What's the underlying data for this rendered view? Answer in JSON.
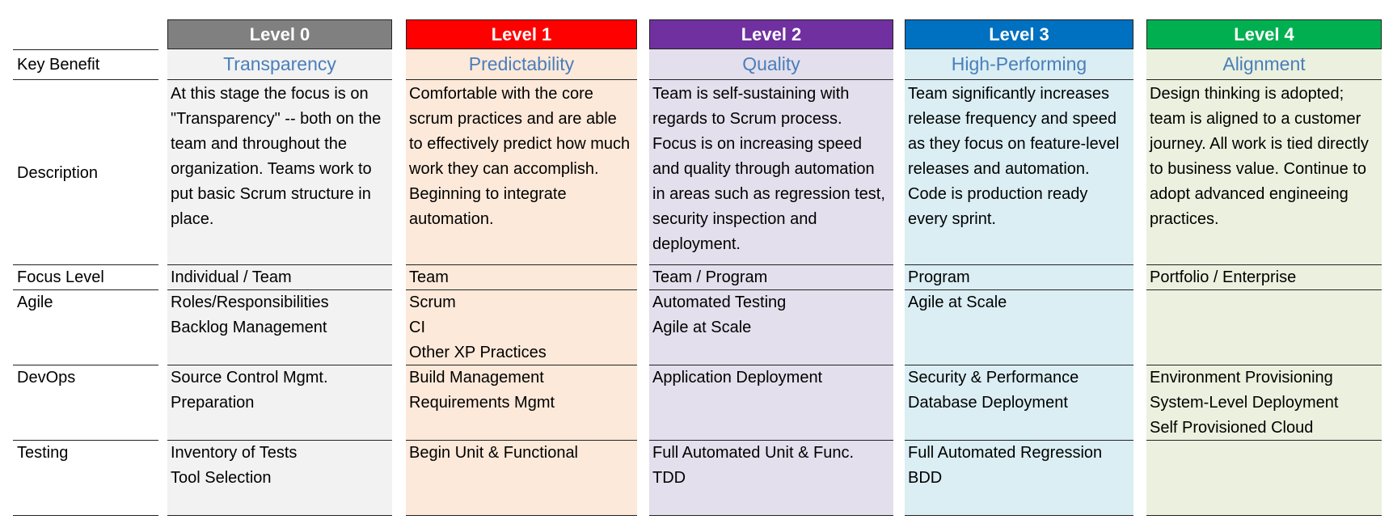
{
  "row_labels": {
    "key_benefit": "Key Benefit",
    "description": "Description",
    "focus_level": "Focus Level",
    "agile": "Agile",
    "devops": "DevOps",
    "testing": "Testing"
  },
  "levels": [
    {
      "header": "Level 0",
      "header_color": "#808080",
      "bg_color": "#f2f2f2",
      "key_benefit": "Transparency",
      "description": "At this stage the focus is on \"Transparency\" -- both on the team and throughout the organization.  Teams work to put basic Scrum structure in place.",
      "focus_level": "Individual / Team",
      "agile": [
        "Roles/Responsibilities",
        "Backlog Management"
      ],
      "devops": [
        "Source Control Mgmt.",
        "Preparation"
      ],
      "testing": [
        "Inventory of Tests",
        "Tool Selection"
      ]
    },
    {
      "header": "Level 1",
      "header_color": "#ff0000",
      "bg_color": "#fde9d9",
      "key_benefit": "Predictability",
      "description": "Comfortable with the core scrum practices and are able to effectively predict how much work they can accomplish.  Beginning to integrate automation.",
      "focus_level": "Team",
      "agile": [
        "Scrum",
        "CI",
        "Other XP Practices"
      ],
      "devops": [
        "Build Management",
        "Requirements Mgmt"
      ],
      "testing": [
        "Begin Unit & Functional"
      ]
    },
    {
      "header": "Level 2",
      "header_color": "#7030a0",
      "bg_color": "#e4dfec",
      "key_benefit": "Quality",
      "description": "Team is self-sustaining with regards to Scrum process.  Focus is on increasing speed and quality through automation in areas such as regression test, security inspection and deployment.",
      "focus_level": "Team / Program",
      "agile": [
        "Automated Testing",
        "Agile at Scale"
      ],
      "devops": [
        "Application Deployment"
      ],
      "testing": [
        "Full Automated Unit & Func.",
        "TDD"
      ]
    },
    {
      "header": "Level 3",
      "header_color": "#0070c0",
      "bg_color": "#daeef3",
      "key_benefit": "High-Performing",
      "description": "Team significantly increases release frequency and speed as they focus on feature-level releases and automation.  Code is production ready every sprint.",
      "focus_level": "Program",
      "agile": [
        "Agile at Scale"
      ],
      "devops": [
        "Security & Performance",
        "Database Deployment"
      ],
      "testing": [
        "Full Automated Regression",
        "BDD"
      ]
    },
    {
      "header": "Level 4",
      "header_color": "#00b050",
      "bg_color": "#ebf1de",
      "key_benefit": "Alignment",
      "description": "Design thinking is adopted; team is aligned to a customer journey.  All work is tied directly to business value.  Continue to adopt advanced engineeing practices.",
      "focus_level": "Portfolio / Enterprise",
      "agile": [],
      "devops": [
        "Environment Provisioning",
        "System-Level Deployment",
        "Self Provisioned Cloud"
      ],
      "testing": []
    }
  ]
}
